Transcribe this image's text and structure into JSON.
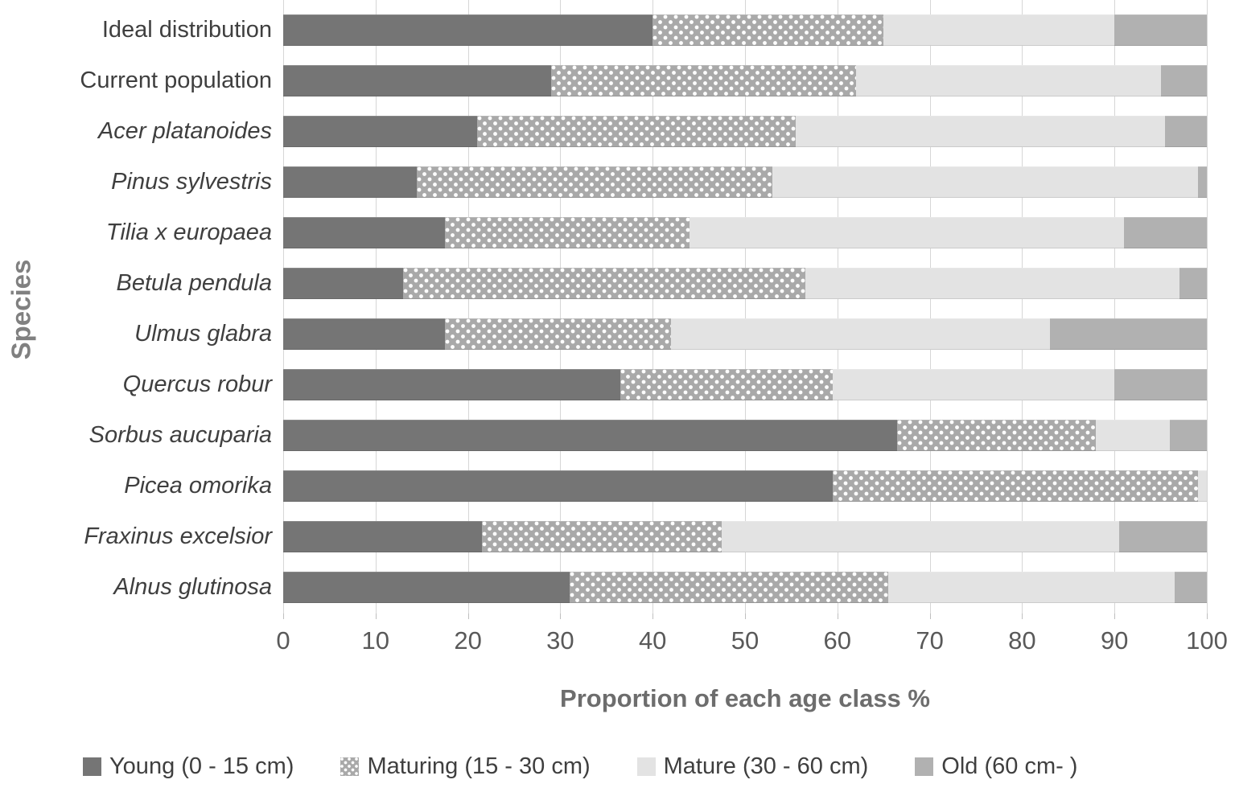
{
  "chart_data": {
    "type": "bar",
    "subtype": "horizontal-stacked",
    "title": "",
    "xlabel": "Proportion of each age class %",
    "ylabel": "Species",
    "xlim": [
      0,
      100
    ],
    "x_ticks": [
      0,
      10,
      20,
      30,
      40,
      50,
      60,
      70,
      80,
      90,
      100
    ],
    "grid": true,
    "legend_position": "bottom",
    "categories": [
      {
        "label": "Ideal distribution",
        "italic": false
      },
      {
        "label": "Current population",
        "italic": false
      },
      {
        "label": "Acer platanoides",
        "italic": true
      },
      {
        "label": "Pinus sylvestris",
        "italic": true
      },
      {
        "label": "Tilia x europaea",
        "italic": true
      },
      {
        "label": "Betula pendula",
        "italic": true
      },
      {
        "label": "Ulmus glabra",
        "italic": true
      },
      {
        "label": "Quercus robur",
        "italic": true
      },
      {
        "label": "Sorbus aucuparia",
        "italic": true
      },
      {
        "label": "Picea omorika",
        "italic": true
      },
      {
        "label": "Fraxinus excelsior",
        "italic": true
      },
      {
        "label": "Alnus glutinosa",
        "italic": true
      }
    ],
    "series": [
      {
        "name": "Young (0 - 15 cm)",
        "color": "#757575",
        "pattern": "solid",
        "values": [
          40,
          29,
          21,
          14.5,
          17.5,
          13,
          17.5,
          36.5,
          66.5,
          59.5,
          21.5,
          31
        ]
      },
      {
        "name": "Maturing (15 - 30 cm)",
        "color": "#a9a9a9",
        "pattern": "white-dots",
        "values": [
          25,
          33,
          34.5,
          38.5,
          26.5,
          43.5,
          24.5,
          23,
          21.5,
          39.5,
          26,
          34.5
        ]
      },
      {
        "name": "Mature (30 - 60 cm)",
        "color": "#e3e3e3",
        "pattern": "solid",
        "values": [
          25,
          33,
          40,
          46,
          47,
          40.5,
          41,
          30.5,
          8,
          1,
          43,
          31
        ]
      },
      {
        "name": "Old (60 cm- )",
        "color": "#b1b1b1",
        "pattern": "solid",
        "values": [
          10,
          5,
          4.5,
          1,
          9,
          3,
          17,
          10,
          4,
          0,
          9.5,
          3.5
        ]
      }
    ],
    "colors": {
      "gridline": "#d6d6d6",
      "tick_label": "#595959",
      "axis_title": "#6d6d6d",
      "category_label": "#3f3f3f"
    }
  }
}
